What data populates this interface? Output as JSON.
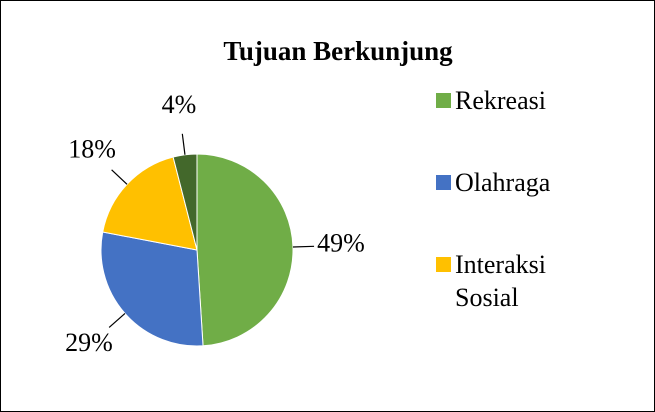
{
  "chart_data": {
    "type": "pie",
    "title": "Tujuan Berkunjung",
    "categories": [
      "Rekreasi",
      "Olahraga",
      "Interaksi Sosial",
      null
    ],
    "values": [
      49,
      29,
      18,
      4
    ],
    "value_labels": [
      "49%",
      "29%",
      "18%",
      "4%"
    ],
    "colors": [
      "#70ad47",
      "#4472c4",
      "#ffc000",
      "#43682b"
    ],
    "legend": "right"
  }
}
